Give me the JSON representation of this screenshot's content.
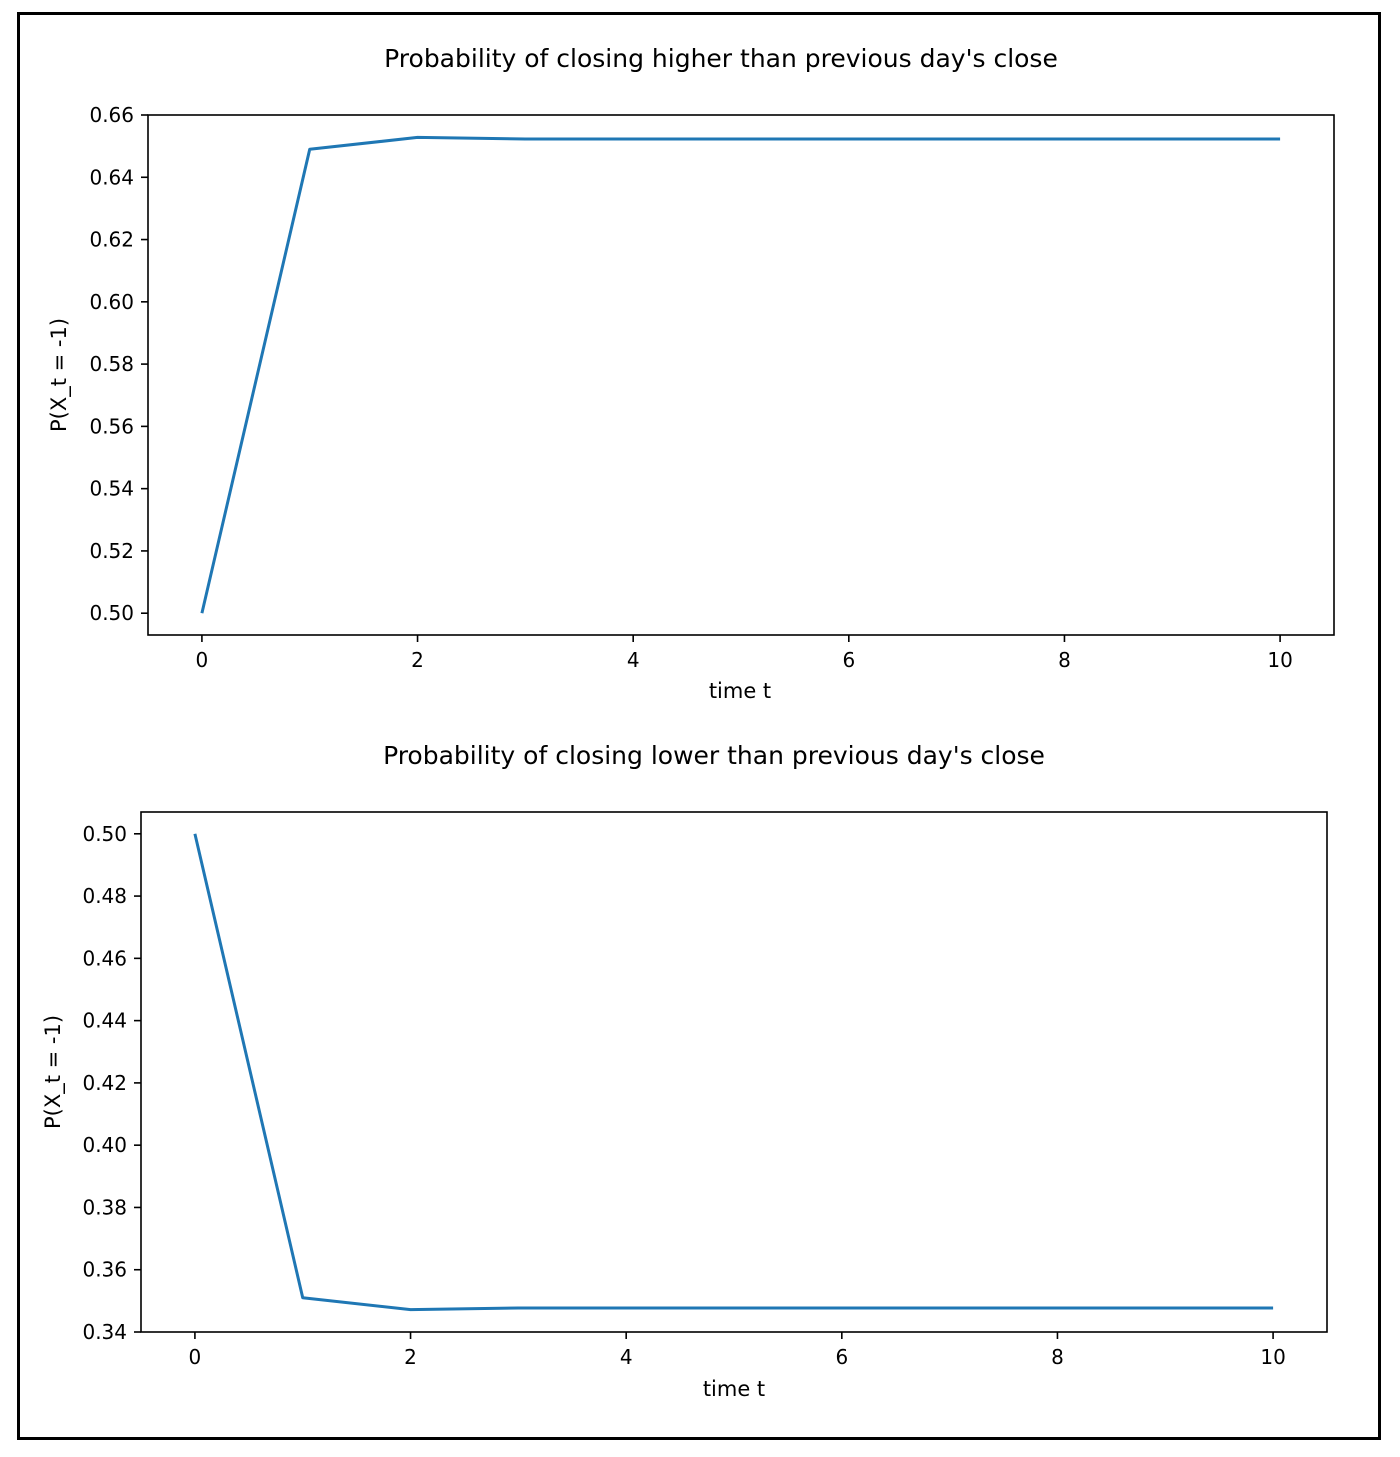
{
  "chart_data": [
    {
      "type": "line",
      "title": "Probability of closing higher than previous day's close",
      "xlabel": "time t",
      "ylabel": "P(X_t = -1)",
      "xlim": [
        -0.5,
        10.5
      ],
      "ylim": [
        0.493,
        0.66
      ],
      "xticks": [
        0,
        2,
        4,
        6,
        8,
        10
      ],
      "yticks": [
        0.5,
        0.52,
        0.54,
        0.56,
        0.58,
        0.6,
        0.62,
        0.64,
        0.66
      ],
      "x": [
        0,
        1,
        2,
        3,
        4,
        5,
        6,
        7,
        8,
        9,
        10
      ],
      "series": [
        {
          "values": [
            0.5,
            0.649,
            0.6528,
            0.6523,
            0.6523,
            0.6523,
            0.6523,
            0.6523,
            0.6523,
            0.6523,
            0.6523
          ],
          "color": "#1f77b4"
        }
      ],
      "grid": false
    },
    {
      "type": "line",
      "title": "Probability of closing lower than previous day's close",
      "xlabel": "time t",
      "ylabel": "P(X_t = -1)",
      "xlim": [
        -0.5,
        10.5
      ],
      "ylim": [
        0.34,
        0.507
      ],
      "xticks": [
        0,
        2,
        4,
        6,
        8,
        10
      ],
      "yticks": [
        0.34,
        0.36,
        0.38,
        0.4,
        0.42,
        0.44,
        0.46,
        0.48,
        0.5
      ],
      "x": [
        0,
        1,
        2,
        3,
        4,
        5,
        6,
        7,
        8,
        9,
        10
      ],
      "series": [
        {
          "values": [
            0.5,
            0.351,
            0.3472,
            0.3477,
            0.3477,
            0.3477,
            0.3477,
            0.3477,
            0.3477,
            0.3477,
            0.3477
          ],
          "color": "#1f77b4"
        }
      ],
      "grid": false
    }
  ]
}
